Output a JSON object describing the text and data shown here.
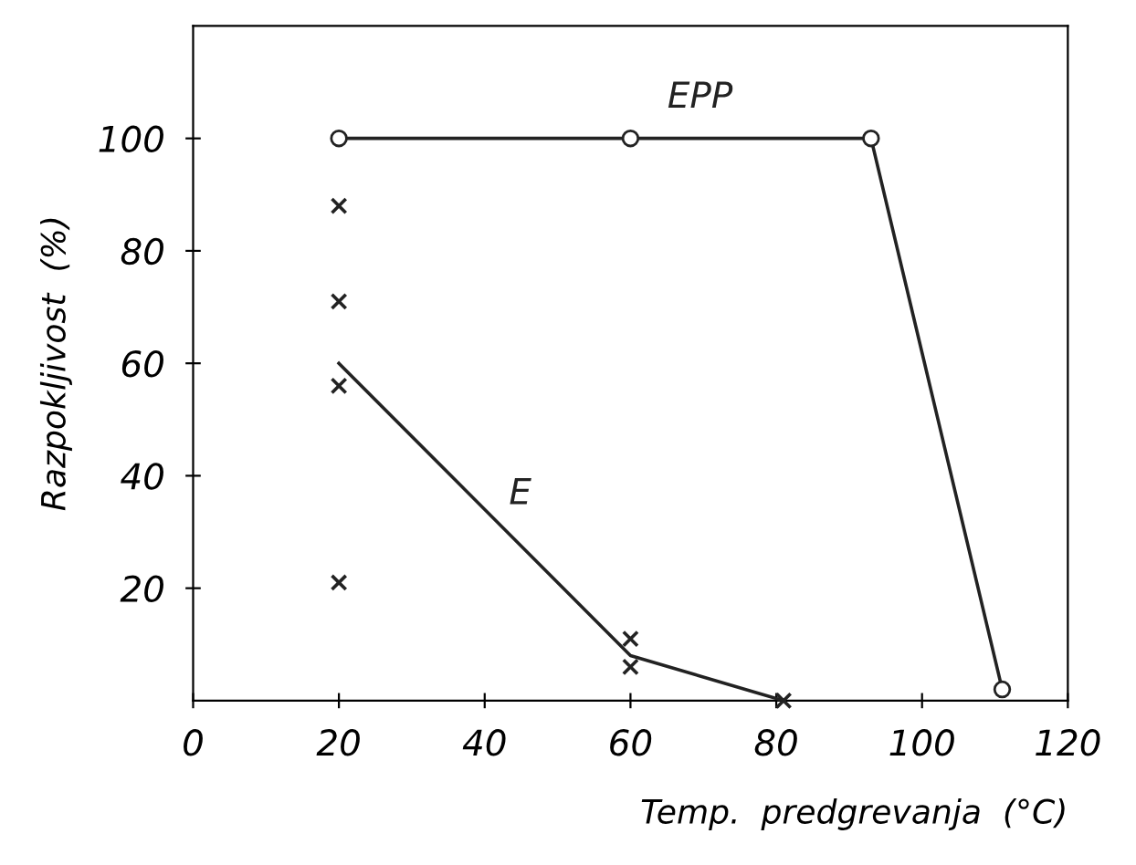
{
  "chart_data": {
    "type": "line",
    "xlabel": "Temp.  predgrevanja  (°C)",
    "ylabel": "Razpokljivost  (%)",
    "xlim": [
      0,
      120
    ],
    "xticks": [
      0,
      20,
      40,
      60,
      80,
      100,
      120
    ],
    "ylim": [
      0,
      120
    ],
    "yticks": [
      20,
      40,
      60,
      80,
      100
    ],
    "grid": false,
    "legend": false,
    "series": [
      {
        "name": "EPP",
        "color": "#222222",
        "marker": "circle",
        "x": [
          20,
          60,
          93,
          111
        ],
        "values": [
          100,
          100,
          100,
          2
        ]
      },
      {
        "name": "E",
        "color": "#222222",
        "marker": "none",
        "x": [
          20,
          60,
          81
        ],
        "values": [
          60,
          8,
          0
        ]
      },
      {
        "type": "scatter",
        "color": "#222222",
        "marker": "cross",
        "x": [
          20,
          20,
          20,
          20,
          60,
          60,
          81
        ],
        "values": [
          88,
          71,
          56,
          21,
          11,
          6,
          0
        ]
      }
    ]
  }
}
